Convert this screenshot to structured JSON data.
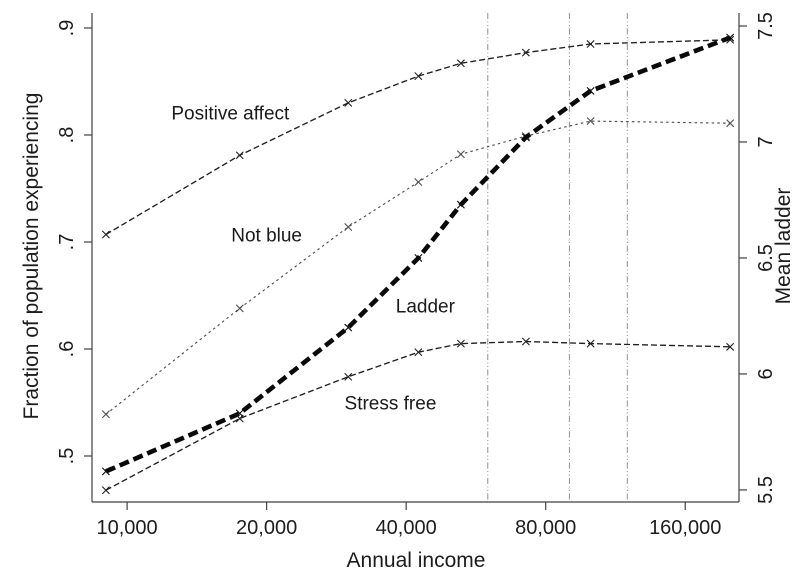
{
  "figure": {
    "background": "#ffffff",
    "text_color": "#1c1c1c",
    "axis_color": "#404040",
    "xlabel": "Annual income",
    "ylabel_left": "Fraction of population experiencing",
    "ylabel_right": "Mean ladder"
  },
  "chart_data": {
    "type": "line",
    "title": "",
    "xlabel": "Annual income",
    "ylabel_left": "Fraction of population experiencing",
    "ylabel_right": "Mean ladder",
    "xscale": "log",
    "grid": false,
    "legend_position": "inline-labels",
    "xlim": [
      8400,
      209000
    ],
    "ylim_left": [
      0.457,
      0.914
    ],
    "ylim_right": [
      5.448,
      7.556
    ],
    "x_ticks": [
      {
        "value": 10000,
        "label": "10,000"
      },
      {
        "value": 20000,
        "label": "20,000"
      },
      {
        "value": 40000,
        "label": "40,000"
      },
      {
        "value": 80000,
        "label": "80,000"
      },
      {
        "value": 160000,
        "label": "160,000"
      }
    ],
    "y_ticks_left": [
      {
        "value": 0.5,
        "label": ".5"
      },
      {
        "value": 0.6,
        "label": ".6"
      },
      {
        "value": 0.7,
        "label": ".7"
      },
      {
        "value": 0.8,
        "label": ".8"
      },
      {
        "value": 0.9,
        "label": ".9"
      }
    ],
    "y_ticks_right": [
      {
        "value": 5.5,
        "label": "5.5"
      },
      {
        "value": 6.0,
        "label": "6"
      },
      {
        "value": 6.5,
        "label": "6.5"
      },
      {
        "value": 7.0,
        "label": "7"
      },
      {
        "value": 7.5,
        "label": "7.5"
      }
    ],
    "reference_lines_x": [
      60000,
      90000,
      120000
    ],
    "reference_line_color": "#909090",
    "x": [
      9000,
      17500,
      30000,
      42500,
      52500,
      72500,
      100000,
      200000
    ],
    "series": [
      {
        "name": "Positive affect",
        "axis": "left",
        "marker": "x",
        "color": "#1f1f1f",
        "values": [
          0.707,
          0.781,
          0.83,
          0.855,
          0.867,
          0.877,
          0.885,
          0.889
        ],
        "label_at": {
          "x": 16700,
          "y": 0.82
        }
      },
      {
        "name": "Not blue",
        "axis": "left",
        "marker": "x",
        "color": "#4d4d4d",
        "values": [
          0.539,
          0.638,
          0.714,
          0.756,
          0.782,
          0.799,
          0.813,
          0.811
        ],
        "label_at": {
          "x": 20000,
          "y": 0.706
        }
      },
      {
        "name": "Ladder",
        "axis": "right",
        "marker": "x",
        "color": "#0a0a0a",
        "values": [
          5.58,
          5.83,
          6.2,
          6.5,
          6.73,
          7.02,
          7.22,
          7.45
        ],
        "label_at": {
          "x": 44000,
          "y": 6.29
        }
      },
      {
        "name": "Stress free",
        "axis": "left",
        "marker": "x",
        "color": "#1f1f1f",
        "values": [
          0.468,
          0.535,
          0.574,
          0.597,
          0.605,
          0.607,
          0.605,
          0.602
        ],
        "label_at": {
          "x": 37000,
          "y": 0.549
        }
      }
    ]
  }
}
